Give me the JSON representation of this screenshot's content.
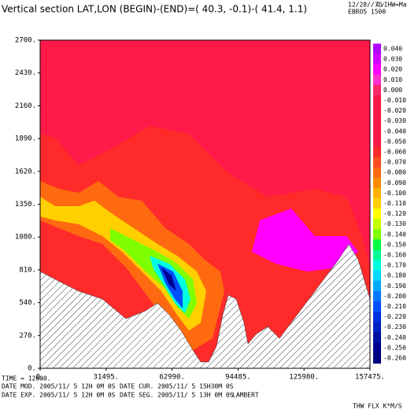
{
  "chart_data": {
    "type": "contour",
    "title": "Vertical section LAT,LON (BEGIN)-(END)=( 40.3, -0.1)-( 41.4,  1.1)",
    "header_right": [
      "12/28//7C",
      "CvIHW=Mae",
      "EBRO5 1500"
    ],
    "xlim": [
      0,
      157475
    ],
    "xticks": [
      {
        "value": 0,
        "label": "0."
      },
      {
        "value": 31495,
        "label": "31495."
      },
      {
        "value": 62990,
        "label": "62990."
      },
      {
        "value": 94485,
        "label": "94485."
      },
      {
        "value": 125980,
        "label": "125980."
      },
      {
        "value": 157475,
        "label": "157475."
      }
    ],
    "ylim": [
      0,
      2700
    ],
    "yticks": [
      {
        "value": 0,
        "label": "0."
      },
      {
        "value": 270,
        "label": "270."
      },
      {
        "value": 540,
        "label": "540."
      },
      {
        "value": 810,
        "label": "810."
      },
      {
        "value": 1080,
        "label": "1080."
      },
      {
        "value": 1350,
        "label": "1350."
      },
      {
        "value": 1620,
        "label": "1620."
      },
      {
        "value": 1890,
        "label": "1890."
      },
      {
        "value": 2160,
        "label": "2160."
      },
      {
        "value": 2430,
        "label": "2430."
      },
      {
        "value": 2700,
        "label": "2700."
      }
    ],
    "levels": [
      {
        "value": 0.04,
        "label": "0.040"
      },
      {
        "value": 0.03,
        "label": "0.030"
      },
      {
        "value": 0.02,
        "label": "0.020"
      },
      {
        "value": 0.01,
        "label": "0.010"
      },
      {
        "value": 0,
        "label": "0.000"
      },
      {
        "value": -0.01,
        "label": "-0.010"
      },
      {
        "value": -0.02,
        "label": "-0.020"
      },
      {
        "value": -0.03,
        "label": "-0.030"
      },
      {
        "value": -0.04,
        "label": "-0.040"
      },
      {
        "value": -0.05,
        "label": "-0.050"
      },
      {
        "value": -0.06,
        "label": "-0.060"
      },
      {
        "value": -0.07,
        "label": "-0.070"
      },
      {
        "value": -0.08,
        "label": "-0.080"
      },
      {
        "value": -0.09,
        "label": "-0.090"
      },
      {
        "value": -0.1,
        "label": "-0.100"
      },
      {
        "value": -0.11,
        "label": "-0.110"
      },
      {
        "value": -0.12,
        "label": "-0.120"
      },
      {
        "value": -0.13,
        "label": "-0.130"
      },
      {
        "value": -0.14,
        "label": "-0.140"
      },
      {
        "value": -0.15,
        "label": "-0.150"
      },
      {
        "value": -0.16,
        "label": "-0.160"
      },
      {
        "value": -0.17,
        "label": "-0.170"
      },
      {
        "value": -0.18,
        "label": "-0.180"
      },
      {
        "value": -0.19,
        "label": "-0.190"
      },
      {
        "value": -0.2,
        "label": "-0.200"
      },
      {
        "value": -0.21,
        "label": "-0.210"
      },
      {
        "value": -0.22,
        "label": "-0.220"
      },
      {
        "value": -0.23,
        "label": "-0.230"
      },
      {
        "value": -0.24,
        "label": "-0.240"
      },
      {
        "value": -0.25,
        "label": "-0.250"
      },
      {
        "value": -0.26,
        "label": "-0.260"
      }
    ],
    "level_colors": [
      "#b000ff",
      "#d000ff",
      "#ff00ff",
      "#ff30d0",
      "#ff2a6a",
      "#ff1a4a",
      "#ff1a4a",
      "#ff1a4a",
      "#ff1a4a",
      "#ff1a4a",
      "#ff2a2a",
      "#ff4a20",
      "#ff6a10",
      "#ff8c00",
      "#ffb000",
      "#ffd000",
      "#ffff00",
      "#c8ff00",
      "#80ff00",
      "#00ff40",
      "#00ff90",
      "#00ffe0",
      "#00d8ff",
      "#00a8ff",
      "#0078ff",
      "#0050ff",
      "#0030e0",
      "#0020c0",
      "#0010a0",
      "#000090",
      "#000080"
    ],
    "footer": [
      "TIME =    12600.",
      "DATE MOD. 2005/11/ 5  12H 0M 0S",
      "DATE EXP. 2005/11/ 5  12H 0M 0S",
      "DATE CUR. 2005/11/ 5  15H30M 0S",
      "DATE SEG. 2005/11/ 5  13H 0M 0S",
      "LAMBERT",
      "THW FLX K*M/S"
    ]
  }
}
